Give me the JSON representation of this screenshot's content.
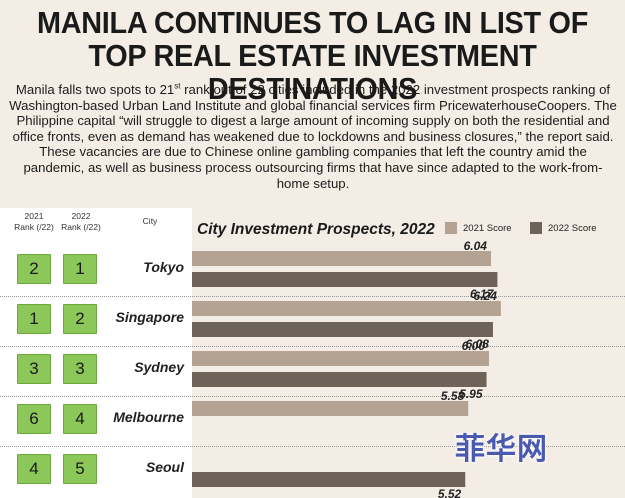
{
  "headline": {
    "line1": "MANILA CONTINUES TO LAG IN LIST OF",
    "line2": "TOP REAL ESTATE INVESTMENT DESTINATIONS"
  },
  "intro": {
    "before_sup": "Manila falls two spots to 21",
    "sup": "st",
    "after_sup": " rank out of 22 cities included in the 2022 investment prospects ranking of Washington-based Urban Land Institute and global financial services firm PricewaterhouseCoopers. The Philippine capital “will struggle to digest a large amount of incoming supply on both the residential and office fronts, even as demand has weakened due to lockdowns and business closures,” the report said. These vacancies are due to Chinese online gambling companies that left the country amid the pandemic, as well as business process outsourcing firms that have since adapted to the work-from-home setup."
  },
  "table_headers": {
    "rank_2021_line1": "2021",
    "rank_2021_line2": "Rank (/22)",
    "rank_2022_line1": "2022",
    "rank_2022_line2": "Rank (/22)",
    "city": "City"
  },
  "rows": [
    {
      "rank_2021": "2",
      "rank_2022": "1",
      "city": "Tokyo"
    },
    {
      "rank_2021": "1",
      "rank_2022": "2",
      "city": "Singapore"
    },
    {
      "rank_2021": "3",
      "rank_2022": "3",
      "city": "Sydney"
    },
    {
      "rank_2021": "6",
      "rank_2022": "4",
      "city": "Melbourne"
    },
    {
      "rank_2021": "4",
      "rank_2022": "5",
      "city": "Seoul"
    }
  ],
  "watermark": "菲华网",
  "chart_data": {
    "type": "bar",
    "orientation": "horizontal",
    "title": "City Investment Prospects, 2022",
    "categories": [
      "Tokyo",
      "Singapore",
      "Sydney",
      "Melbourne",
      "Seoul"
    ],
    "series": [
      {
        "name": "2021 Score",
        "color": "#b4a393",
        "values": [
          6.04,
          6.24,
          6.0,
          5.58,
          null
        ],
        "labels": [
          "6.04",
          "6.24",
          "6.00",
          "5.58",
          ""
        ]
      },
      {
        "name": "2022 Score",
        "color": "#6e6358",
        "values": [
          6.17,
          6.08,
          5.95,
          null,
          5.52
        ],
        "labels": [
          "6.17",
          "6.08",
          "5.95",
          "",
          "5.52"
        ]
      }
    ],
    "legend": "top-right",
    "grid": false
  }
}
